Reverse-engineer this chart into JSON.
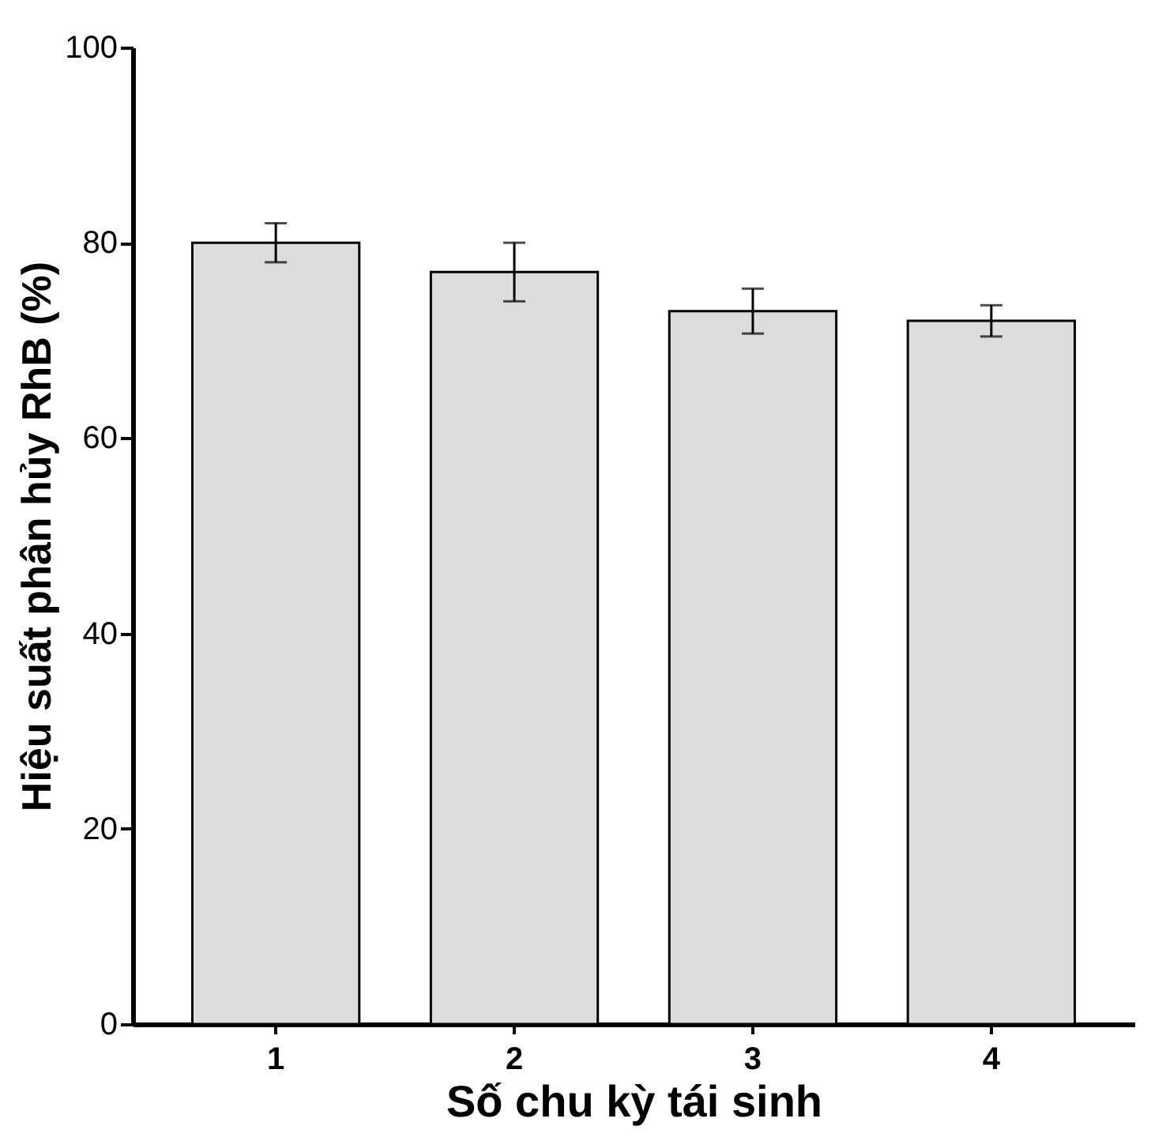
{
  "chart_data": {
    "type": "bar",
    "xlabel": "Số chu kỳ tái sinh",
    "ylabel": "Hiệu suất phân hủy RhB (%)",
    "categories": [
      "1",
      "2",
      "3",
      "4"
    ],
    "values": [
      80,
      77,
      73,
      72
    ],
    "errors": [
      2,
      3,
      2.3,
      1.6
    ],
    "color": "#dcdcdc",
    "ylim": [
      0,
      100
    ],
    "yticks": [
      0,
      20,
      40,
      60,
      80,
      100
    ],
    "grid": false
  }
}
